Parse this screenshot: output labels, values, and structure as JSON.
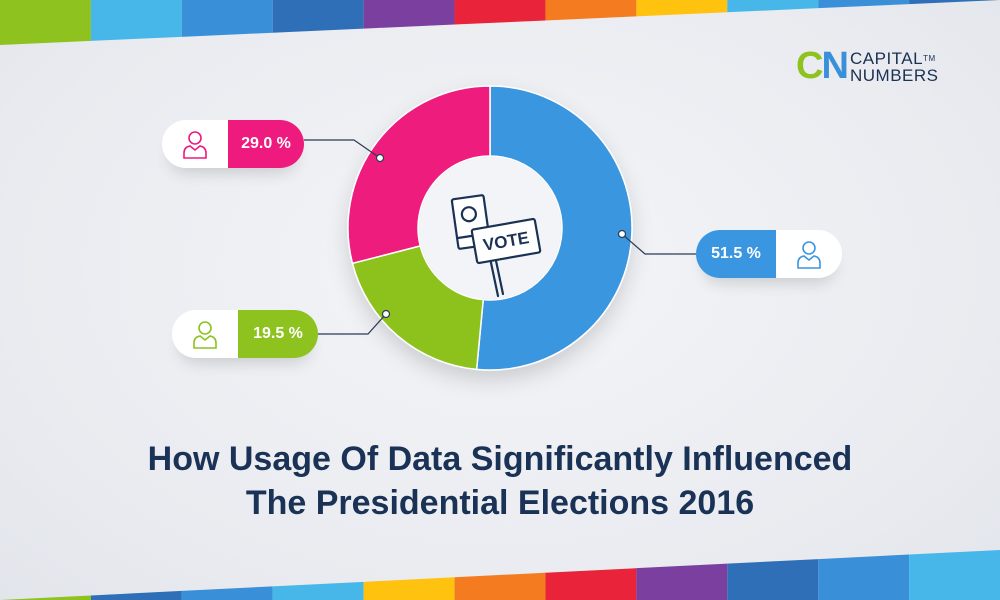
{
  "brand": {
    "initials": "CN",
    "line1": "CAPITAL",
    "line2": "NUMBERS",
    "trademark": "TM"
  },
  "title_lines": [
    "How Usage Of Data Significantly Influenced",
    "The Presidential Elections 2016"
  ],
  "center_sign_text": "VOTE",
  "colors": {
    "pink": "#ee1a7d",
    "green": "#8dc21f",
    "blue": "#3a96e0",
    "title": "#1a3255"
  },
  "chart_data": {
    "type": "pie",
    "variant": "donut",
    "title": "How Usage Of Data Significantly Influenced The Presidential Elections 2016",
    "slices": [
      {
        "label": "51.5 %",
        "value": 51.5,
        "color": "#3a96e0",
        "icon": "person-icon"
      },
      {
        "label": "19.5 %",
        "value": 19.5,
        "color": "#8dc21f",
        "icon": "person-icon"
      },
      {
        "label": "29.0 %",
        "value": 29.0,
        "color": "#ee1a7d",
        "icon": "person-icon"
      }
    ]
  }
}
